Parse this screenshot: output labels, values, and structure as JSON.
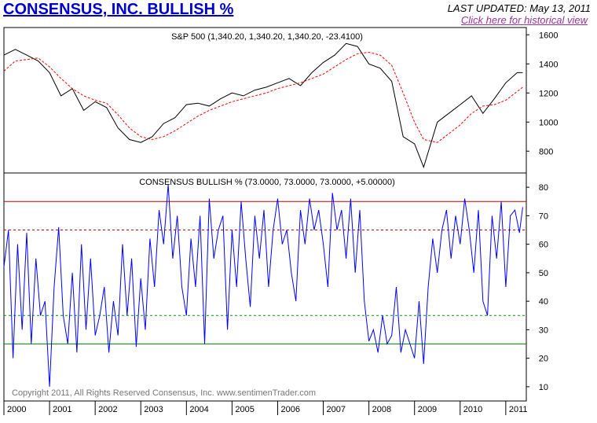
{
  "header": {
    "title": "CONSENSUS, INC. BULLISH %",
    "last_updated": "LAST UPDATED:  May 13, 2011",
    "historical_link": "Click here for historical view"
  },
  "copyright": "Copyright 2011, All Rights Reserved  Consensus, Inc.  www.sentimenTrader.com",
  "colors": {
    "price": "#000000",
    "moving_average": "#ff0000",
    "bullish": "#0000ff",
    "upper_lines": "#cc0000",
    "lower_lines": "#009900"
  },
  "chart_data": [
    {
      "type": "line",
      "title": "S&P 500 (1,340.20, 1,340.20, 1,340.20, -23.4100)",
      "x": [
        2000.0,
        2000.25,
        2000.5,
        2000.75,
        2001.0,
        2001.25,
        2001.5,
        2001.75,
        2002.0,
        2002.25,
        2002.5,
        2002.75,
        2003.0,
        2003.25,
        2003.5,
        2003.75,
        2004.0,
        2004.25,
        2004.5,
        2004.75,
        2005.0,
        2005.25,
        2005.5,
        2005.75,
        2006.0,
        2006.25,
        2006.5,
        2006.75,
        2007.0,
        2007.25,
        2007.5,
        2007.75,
        2008.0,
        2008.25,
        2008.5,
        2008.75,
        2009.0,
        2009.2,
        2009.5,
        2009.75,
        2010.0,
        2010.25,
        2010.5,
        2010.75,
        2011.0,
        2011.25,
        2011.37
      ],
      "series": [
        {
          "name": "S&P 500",
          "values": [
            1460,
            1500,
            1460,
            1420,
            1340,
            1180,
            1230,
            1080,
            1140,
            1100,
            960,
            880,
            860,
            900,
            990,
            1030,
            1120,
            1130,
            1110,
            1160,
            1200,
            1180,
            1220,
            1240,
            1270,
            1300,
            1250,
            1340,
            1410,
            1460,
            1540,
            1520,
            1400,
            1370,
            1280,
            900,
            850,
            690,
            1000,
            1060,
            1120,
            1180,
            1060,
            1160,
            1270,
            1340,
            1340
          ]
        },
        {
          "name": "Moving average",
          "values": [
            1350,
            1420,
            1430,
            1440,
            1380,
            1300,
            1230,
            1180,
            1150,
            1130,
            1050,
            960,
            900,
            880,
            900,
            940,
            990,
            1040,
            1080,
            1110,
            1140,
            1160,
            1180,
            1200,
            1230,
            1250,
            1270,
            1300,
            1330,
            1380,
            1430,
            1470,
            1480,
            1460,
            1390,
            1200,
            1000,
            880,
            860,
            920,
            980,
            1060,
            1110,
            1120,
            1150,
            1210,
            1240
          ]
        }
      ],
      "ylim": [
        650,
        1650
      ],
      "yticks": [
        800,
        1000,
        1200,
        1400,
        1600
      ]
    },
    {
      "type": "line",
      "title": "CONSENSUS BULLISH % (73.0000, 73.0000, 73.0000, +5.00000)",
      "x": [
        2000.0,
        2000.1,
        2000.2,
        2000.3,
        2000.4,
        2000.5,
        2000.6,
        2000.7,
        2000.8,
        2000.9,
        2001.0,
        2001.1,
        2001.2,
        2001.3,
        2001.4,
        2001.5,
        2001.6,
        2001.7,
        2001.8,
        2001.9,
        2002.0,
        2002.1,
        2002.2,
        2002.3,
        2002.4,
        2002.5,
        2002.6,
        2002.7,
        2002.8,
        2002.9,
        2003.0,
        2003.1,
        2003.2,
        2003.3,
        2003.4,
        2003.5,
        2003.6,
        2003.7,
        2003.8,
        2003.9,
        2004.0,
        2004.1,
        2004.2,
        2004.3,
        2004.4,
        2004.5,
        2004.6,
        2004.7,
        2004.8,
        2004.9,
        2005.0,
        2005.1,
        2005.2,
        2005.3,
        2005.4,
        2005.5,
        2005.6,
        2005.7,
        2005.8,
        2005.9,
        2006.0,
        2006.1,
        2006.2,
        2006.3,
        2006.4,
        2006.5,
        2006.6,
        2006.7,
        2006.8,
        2006.9,
        2007.0,
        2007.1,
        2007.2,
        2007.3,
        2007.4,
        2007.5,
        2007.6,
        2007.7,
        2007.8,
        2007.9,
        2008.0,
        2008.1,
        2008.2,
        2008.3,
        2008.4,
        2008.5,
        2008.6,
        2008.7,
        2008.8,
        2008.9,
        2009.0,
        2009.1,
        2009.2,
        2009.3,
        2009.4,
        2009.5,
        2009.6,
        2009.7,
        2009.8,
        2009.9,
        2010.0,
        2010.1,
        2010.2,
        2010.3,
        2010.4,
        2010.5,
        2010.6,
        2010.7,
        2010.8,
        2010.9,
        2011.0,
        2011.1,
        2011.2,
        2011.3,
        2011.37
      ],
      "series": [
        {
          "name": "Consensus Bullish %",
          "values": [
            52,
            65,
            20,
            60,
            30,
            64,
            25,
            55,
            35,
            40,
            10,
            45,
            66,
            35,
            25,
            50,
            22,
            60,
            30,
            55,
            28,
            35,
            45,
            22,
            40,
            28,
            60,
            35,
            55,
            24,
            48,
            30,
            62,
            45,
            72,
            60,
            81,
            55,
            70,
            45,
            35,
            62,
            45,
            70,
            25,
            76,
            55,
            65,
            70,
            30,
            65,
            45,
            75,
            55,
            38,
            70,
            55,
            72,
            45,
            65,
            76,
            60,
            65,
            50,
            40,
            72,
            60,
            76,
            65,
            72,
            60,
            45,
            78,
            65,
            72,
            55,
            76,
            50,
            72,
            40,
            26,
            30,
            22,
            35,
            25,
            28,
            45,
            22,
            30,
            25,
            20,
            40,
            18,
            45,
            62,
            50,
            65,
            72,
            55,
            70,
            60,
            76,
            65,
            50,
            72,
            40,
            35,
            70,
            55,
            75,
            45,
            70,
            72,
            64,
            73
          ],
          "ylim": [
            5,
            85
          ]
        }
      ],
      "ylim": [
        5,
        85
      ],
      "yticks": [
        10,
        20,
        30,
        40,
        50,
        60,
        70,
        80
      ],
      "reference_lines": [
        {
          "value": 75,
          "style": "solid",
          "color": "#cc0000"
        },
        {
          "value": 65,
          "style": "dashed",
          "color": "#cc0000"
        },
        {
          "value": 35,
          "style": "dashed",
          "color": "#009900"
        },
        {
          "value": 25,
          "style": "solid",
          "color": "#009900"
        }
      ]
    }
  ],
  "x_axis": {
    "years": [
      "2000",
      "2001",
      "2002",
      "2003",
      "2004",
      "2005",
      "2006",
      "2007",
      "2008",
      "2009",
      "2010",
      "2011"
    ],
    "range": [
      2000.0,
      2011.45
    ]
  }
}
